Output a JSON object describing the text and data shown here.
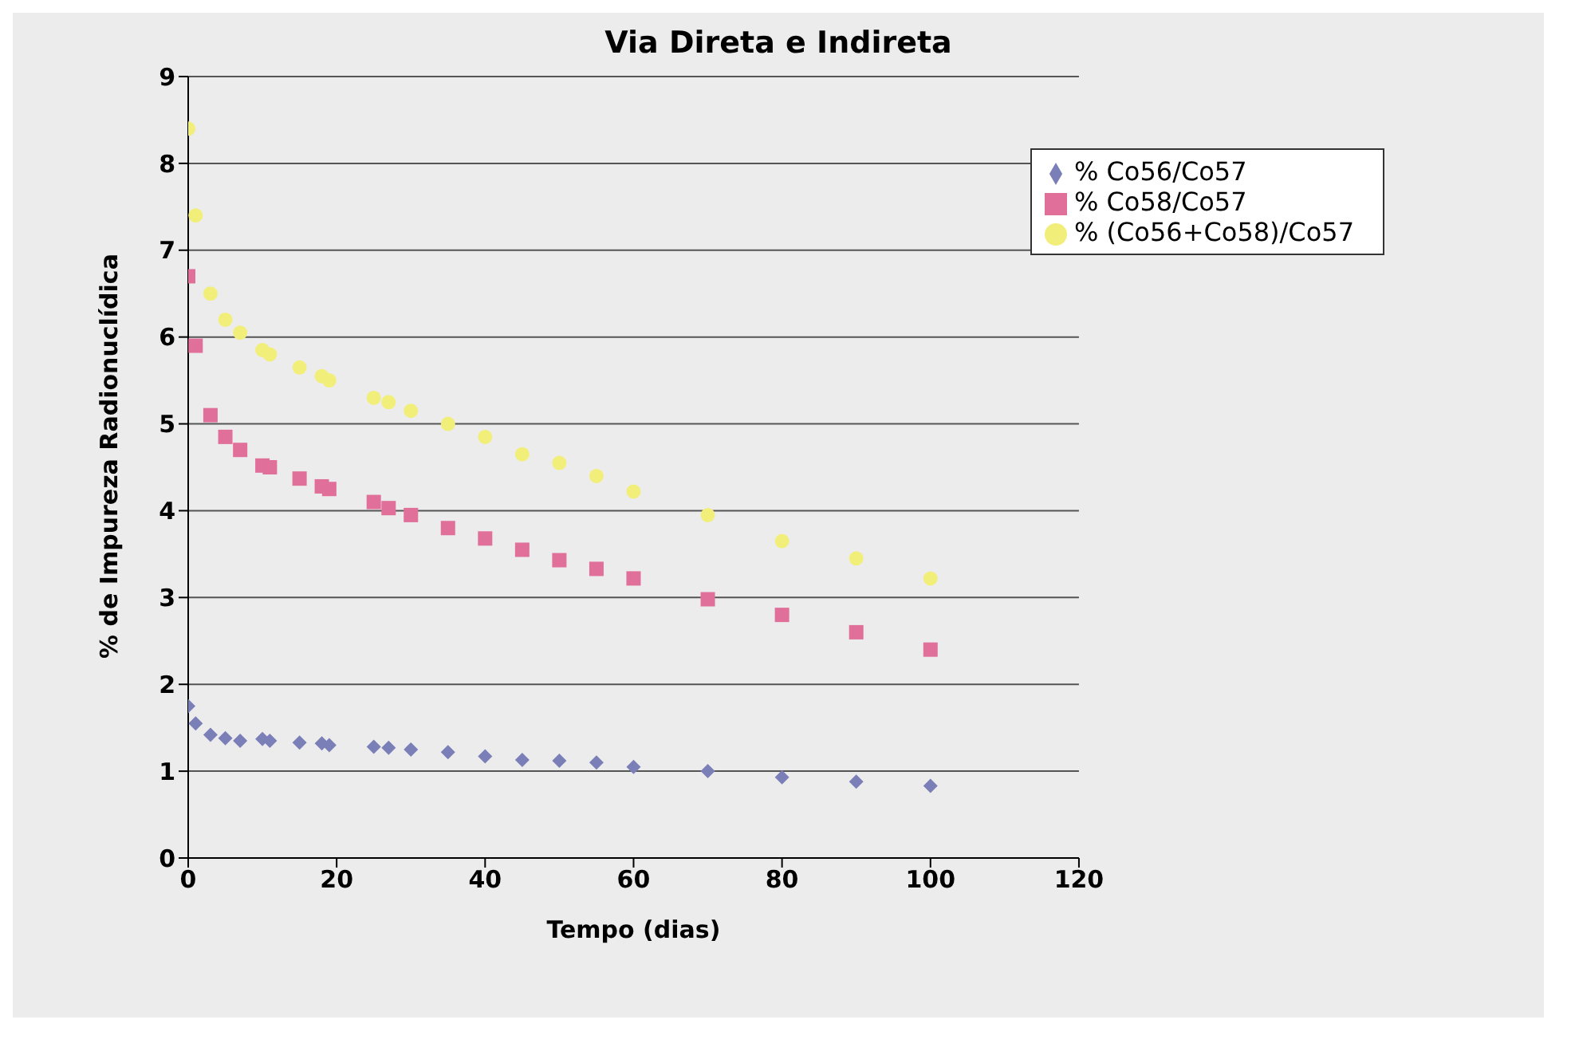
{
  "chart_data": {
    "type": "scatter",
    "title": "Via Direta e Indireta",
    "xlabel": "Tempo (dias)",
    "ylabel": "% de Impureza Radionuclídica",
    "x": [
      0,
      1,
      3,
      5,
      7,
      10,
      11,
      15,
      18,
      19,
      25,
      27,
      30,
      35,
      40,
      45,
      50,
      55,
      60,
      70,
      80,
      90,
      100
    ],
    "series": [
      {
        "name": "% Co56/Co57",
        "color": "#7b7fb8",
        "marker": "diamond",
        "values": [
          1.75,
          1.55,
          1.42,
          1.38,
          1.35,
          1.37,
          1.35,
          1.33,
          1.32,
          1.3,
          1.28,
          1.27,
          1.25,
          1.22,
          1.17,
          1.13,
          1.12,
          1.1,
          1.05,
          1.0,
          0.93,
          0.88,
          0.83
        ]
      },
      {
        "name": "% Co58/Co57",
        "color": "#e0709a",
        "marker": "square",
        "values": [
          6.7,
          5.9,
          5.1,
          4.85,
          4.7,
          4.52,
          4.5,
          4.37,
          4.28,
          4.25,
          4.1,
          4.03,
          3.95,
          3.8,
          3.68,
          3.55,
          3.43,
          3.33,
          3.22,
          2.98,
          2.8,
          2.6,
          2.4
        ]
      },
      {
        "name": "% (Co56+Co58)/Co57",
        "color": "#f2ee7a",
        "marker": "circle",
        "values": [
          8.4,
          7.4,
          6.5,
          6.2,
          6.05,
          5.85,
          5.8,
          5.65,
          5.55,
          5.5,
          5.3,
          5.25,
          5.15,
          5.0,
          4.85,
          4.65,
          4.55,
          4.4,
          4.22,
          3.95,
          3.65,
          3.45,
          3.22
        ]
      }
    ],
    "xlim": [
      0,
      120
    ],
    "xticks": [
      0,
      20,
      40,
      60,
      80,
      100,
      120
    ],
    "ylim": [
      0,
      9
    ],
    "yticks": [
      0,
      1,
      2,
      3,
      4,
      5,
      6,
      7,
      8,
      9
    ],
    "grid": "y",
    "legend": "top right"
  }
}
